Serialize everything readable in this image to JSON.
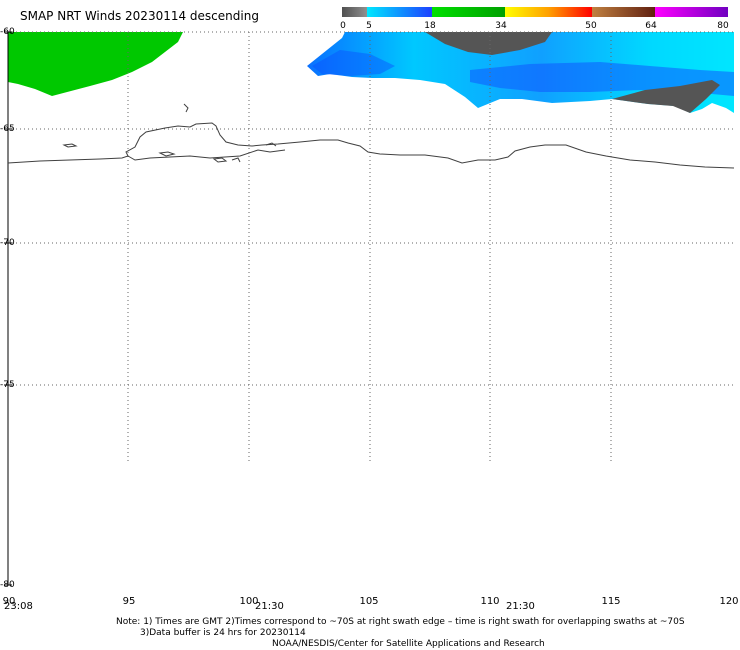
{
  "title": "SMAP NRT Winds  20230114 descending",
  "colorbar": {
    "tick_labels": [
      "0",
      "5",
      "18",
      "34",
      "50",
      "64",
      "80"
    ],
    "tick_values": [
      0,
      5,
      18,
      34,
      50,
      64,
      80
    ],
    "segments": [
      {
        "from": 0,
        "to": 5,
        "colors": [
          "#505050",
          "#8c8c8c"
        ]
      },
      {
        "from": 5,
        "to": 18,
        "colors": [
          "#00e8ff",
          "#1e40ff"
        ]
      },
      {
        "from": 18,
        "to": 34,
        "colors": [
          "#00e000",
          "#00a000"
        ]
      },
      {
        "from": 34,
        "to": 50,
        "colors": [
          "#ffff00",
          "#ffa000",
          "#ff0000"
        ]
      },
      {
        "from": 50,
        "to": 64,
        "colors": [
          "#c08040",
          "#602010"
        ]
      },
      {
        "from": 64,
        "to": 80,
        "colors": [
          "#ff00ff",
          "#7000c0"
        ]
      }
    ]
  },
  "axes": {
    "lat_labels": [
      "-60",
      "-65",
      "-70",
      "-75",
      "-80"
    ],
    "lat_values": [
      -60,
      -65,
      -70,
      -75,
      -80
    ],
    "lon_labels": [
      "90",
      "95",
      "100",
      "105",
      "110",
      "115",
      "120"
    ],
    "lon_values": [
      90,
      95,
      100,
      105,
      110,
      115,
      120
    ]
  },
  "time_labels": [
    "23:08",
    "21:30",
    "21:30"
  ],
  "notes": {
    "line1": "Note: 1) Times are GMT 2)Times correspond to ~70S at right swath edge – time is right swath for overlapping swaths at ~70S",
    "line2": "3)Data buffer is 24 hrs for 20230114",
    "credit": "NOAA/NESDIS/Center for Satellite Applications and Research"
  },
  "colors": {
    "land_outline": "#404040",
    "grid": "#666666",
    "wind_green": "#00cc00",
    "wind_cyan": "#00e6ff",
    "wind_blue": "#0a60ff",
    "wind_dark_gray": "#505050"
  }
}
